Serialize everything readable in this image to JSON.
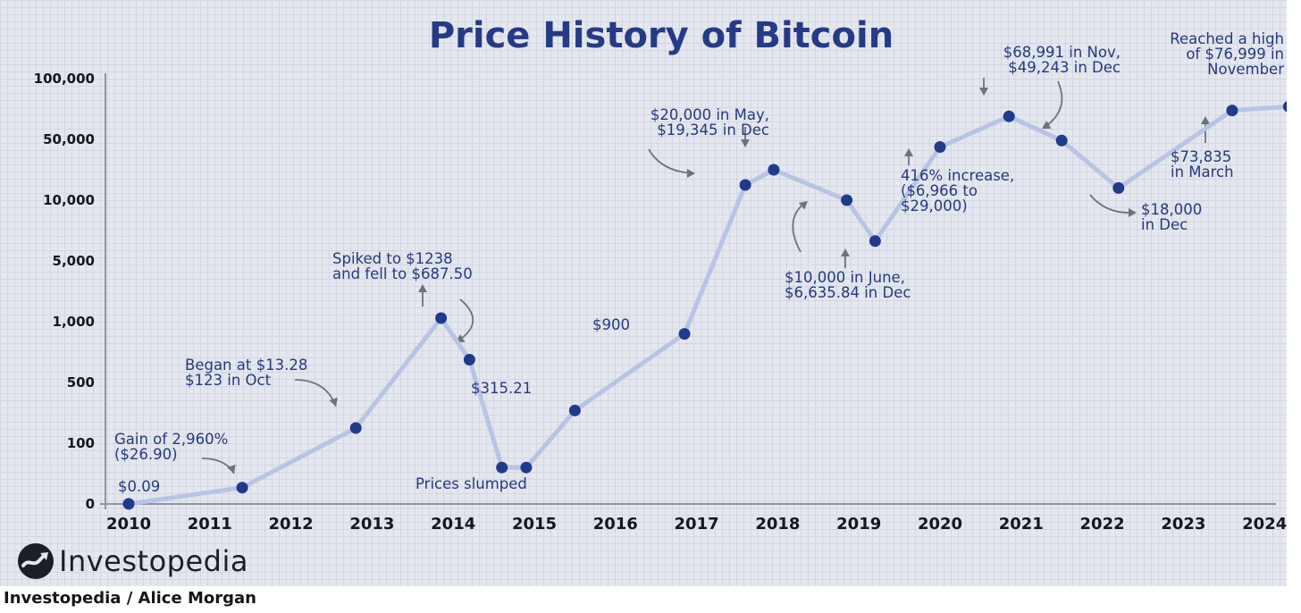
{
  "chart_data": {
    "type": "line",
    "title": "Price History of Bitcoin",
    "xlabel": "",
    "ylabel": "",
    "y_scale": "log",
    "y_ticks": [
      0,
      100,
      500,
      1000,
      5000,
      10000,
      50000,
      100000
    ],
    "y_tick_labels": [
      "0",
      "100",
      "500",
      "1,000",
      "5,000",
      "10,000",
      "50,000",
      "100,000"
    ],
    "x_ticks": [
      "2010",
      "2011",
      "2012",
      "2013",
      "2014",
      "2015",
      "2016",
      "2017",
      "2018",
      "2019",
      "2020",
      "2021",
      "2022",
      "2023",
      "2024"
    ],
    "xlim": [
      2010,
      2024.5
    ],
    "grid": true,
    "legend": "none",
    "series": [
      {
        "points": [
          {
            "x": 2010.0,
            "y": 0.09
          },
          {
            "x": 2011.4,
            "y": 26.9
          },
          {
            "x": 2012.8,
            "y": 200
          },
          {
            "x": 2013.85,
            "y": 1238
          },
          {
            "x": 2014.2,
            "y": 687.5
          },
          {
            "x": 2014.6,
            "y": 60
          },
          {
            "x": 2014.9,
            "y": 60
          },
          {
            "x": 2015.5,
            "y": 315.21
          },
          {
            "x": 2016.85,
            "y": 900
          },
          {
            "x": 2017.6,
            "y": 20000
          },
          {
            "x": 2017.95,
            "y": 30000
          },
          {
            "x": 2018.85,
            "y": 10000
          },
          {
            "x": 2019.2,
            "y": 6635.84
          },
          {
            "x": 2020.0,
            "y": 45000
          },
          {
            "x": 2020.85,
            "y": 68991
          },
          {
            "x": 2021.5,
            "y": 49243
          },
          {
            "x": 2022.2,
            "y": 18000
          },
          {
            "x": 2023.6,
            "y": 73835
          },
          {
            "x": 2024.3,
            "y": 76999
          }
        ]
      }
    ],
    "annotations": [
      {
        "lines": [
          "$0.09"
        ],
        "x": 2010.0,
        "y": 0.09
      },
      {
        "lines": [
          "Gain of 2,960%",
          "($26.90)"
        ],
        "x": 2011.4,
        "y": 26.9
      },
      {
        "lines": [
          "Began at $13.28",
          "$123 in Oct"
        ],
        "x": 2012.8,
        "y": 200
      },
      {
        "lines": [
          "Spiked to $1238",
          "and fell to $687.50"
        ],
        "x": 2013.85,
        "y": 1238
      },
      {
        "lines": [
          "Prices slumped"
        ],
        "x": 2014.75,
        "y": 60
      },
      {
        "lines": [
          "$315.21"
        ],
        "x": 2015.5,
        "y": 315.21
      },
      {
        "lines": [
          "$900"
        ],
        "x": 2016.85,
        "y": 900
      },
      {
        "lines": [
          "$20,000 in May,",
          "$19,345 in Dec"
        ],
        "x": 2017.6,
        "y": 20000
      },
      {
        "lines": [
          "$10,000 in June,",
          "$6,635.84 in Dec"
        ],
        "x": 2019.2,
        "y": 6635.84
      },
      {
        "lines": [
          "416% increase,",
          "($6,966 to",
          "$29,000)"
        ],
        "x": 2020.0,
        "y": 45000
      },
      {
        "lines": [
          "$68,991 in Nov,",
          "$49,243 in Dec"
        ],
        "x": 2020.85,
        "y": 68991
      },
      {
        "lines": [
          "$18,000",
          "in Dec"
        ],
        "x": 2022.2,
        "y": 18000
      },
      {
        "lines": [
          "$73,835",
          "in March"
        ],
        "x": 2023.6,
        "y": 73835
      },
      {
        "lines": [
          "Reached a high",
          "of $76,999 in",
          "November"
        ],
        "x": 2024.3,
        "y": 76999
      }
    ],
    "colors": {
      "line": "#b7c4e4",
      "marker": "#203a8c",
      "title": "#273a86",
      "annotation": "#243a7d",
      "axis": "#15171d",
      "background": "#e4e7ee"
    }
  },
  "branding": {
    "logo_text": "Investopedia",
    "credit": "Investopedia / Alice Morgan"
  }
}
